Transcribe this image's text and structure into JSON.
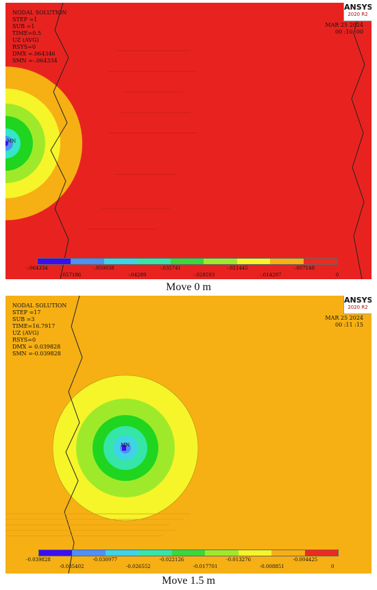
{
  "panels": [
    {
      "info": {
        "title": "NODAL  SOLUTION",
        "lines": [
          "STEP =1",
          "SUB  =1",
          "TIME=0.5",
          "UZ              (AVG)",
          "RSYS=0",
          "DMX  =.064346",
          "SMN  =-.064334"
        ]
      },
      "date": "MAR  25  2024",
      "time": "00 :10 :00",
      "logo": {
        "brand": "ANSYS",
        "version": "2020 R2"
      },
      "mn_label": "MN",
      "background_color": "#e8231f",
      "legend": {
        "colors": [
          "#3a0ef0",
          "#4f8ff6",
          "#3fd3e6",
          "#35e6a8",
          "#3ad83a",
          "#9eea2a",
          "#f5f52a",
          "#f6b014",
          "#ec2a1f"
        ],
        "labels_top": [
          "-.064334",
          "-.050038",
          "-.035741",
          "-.021445",
          "-.007148"
        ],
        "labels_bottom": [
          "-.057186",
          "-.04289",
          "-.028593",
          "-.014297",
          "0"
        ]
      },
      "caption": "Move 0 m"
    },
    {
      "info": {
        "title": "NODAL  SOLUTION",
        "lines": [
          "STEP =17",
          "SUB  =3",
          "TIME=16.7917",
          "UZ              (AVG)",
          "RSYS=0",
          "DMX  = 0.039828",
          "SMN  =-0.039828"
        ]
      },
      "date": "MAR  25  2024",
      "time": "00 :11 :15",
      "logo": {
        "brand": "ANSYS",
        "version": "2020 R2"
      },
      "mn_label": "MN",
      "background_color": "#f6b014",
      "legend": {
        "colors": [
          "#3a0ef0",
          "#4f8ff6",
          "#3fd3e6",
          "#35e6a8",
          "#3ad83a",
          "#9eea2a",
          "#f5f52a",
          "#f6b014",
          "#ec2a1f"
        ],
        "labels_top": [
          "-0.039828",
          "-0.030977",
          "-0.022126",
          "-0.013276",
          "-0.004425"
        ],
        "labels_bottom": [
          "-0.035402",
          "-0.026552",
          "-0.017701",
          "-0.008851",
          "0"
        ]
      },
      "caption": "Move 1.5 m"
    }
  ]
}
